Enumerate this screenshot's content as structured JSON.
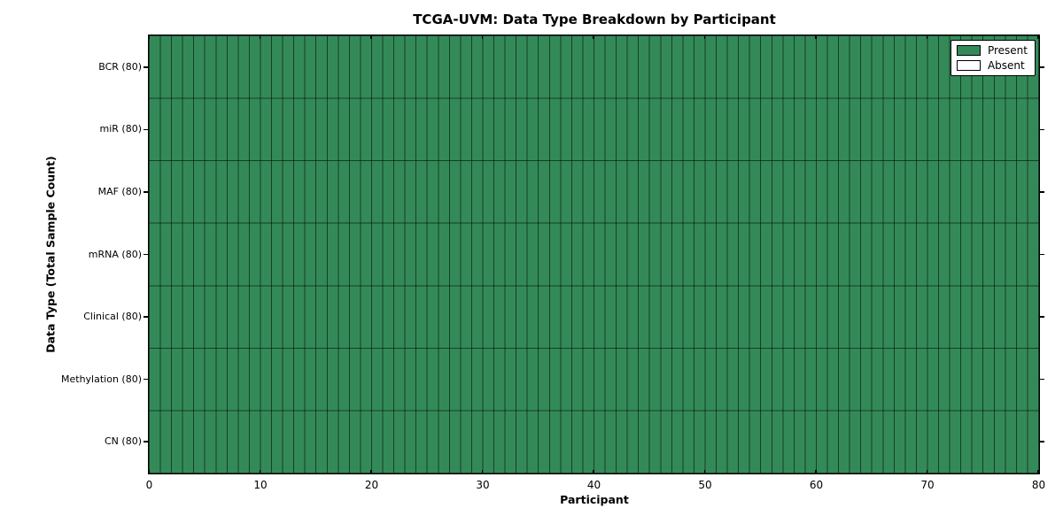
{
  "chart_data": {
    "type": "heatmap",
    "title": "TCGA-UVM: Data Type Breakdown by Participant",
    "xlabel": "Participant",
    "ylabel": "Data Type (Total Sample Count)",
    "xlim": [
      0,
      80
    ],
    "x_ticks": [
      0,
      10,
      20,
      30,
      40,
      50,
      60,
      70,
      80
    ],
    "n_participants": 80,
    "rows": [
      {
        "label": "BCR (80)",
        "data_type": "BCR",
        "total_sample_count": 80,
        "present_count": 80,
        "absent_count": 0
      },
      {
        "label": "miR (80)",
        "data_type": "miR",
        "total_sample_count": 80,
        "present_count": 80,
        "absent_count": 0
      },
      {
        "label": "MAF (80)",
        "data_type": "MAF",
        "total_sample_count": 80,
        "present_count": 80,
        "absent_count": 0
      },
      {
        "label": "mRNA (80)",
        "data_type": "mRNA",
        "total_sample_count": 80,
        "present_count": 80,
        "absent_count": 0
      },
      {
        "label": "Clinical (80)",
        "data_type": "Clinical",
        "total_sample_count": 80,
        "present_count": 80,
        "absent_count": 0
      },
      {
        "label": "Methylation (80)",
        "data_type": "Methylation",
        "total_sample_count": 80,
        "present_count": 80,
        "absent_count": 0
      },
      {
        "label": "CN (80)",
        "data_type": "CN",
        "total_sample_count": 80,
        "present_count": 80,
        "absent_count": 0
      }
    ],
    "all_cells_value": "Present",
    "legend": {
      "position": "upper right",
      "items": [
        {
          "label": "Present",
          "color": "#338a58"
        },
        {
          "label": "Absent",
          "color": "#ffffff"
        }
      ]
    },
    "colors": {
      "present": "#338a58",
      "absent": "#ffffff",
      "cell_border": "rgba(0,0,0,0.55)",
      "axis": "#000000"
    },
    "grid": "per-cell borders"
  }
}
